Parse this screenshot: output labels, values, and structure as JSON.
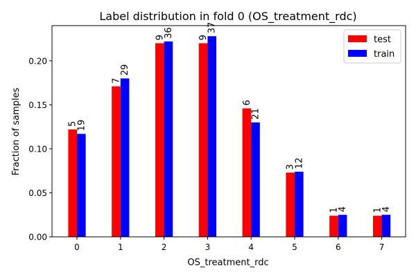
{
  "chart_data": {
    "type": "bar",
    "title": "Label distribution in fold 0 (OS_treatment_rdc)",
    "xlabel": "OS_treatment_rdc",
    "ylabel": "Fraction of samples",
    "categories": [
      "0",
      "1",
      "2",
      "3",
      "4",
      "5",
      "6",
      "7"
    ],
    "yticks": [
      "0.00",
      "0.05",
      "0.10",
      "0.15",
      "0.20"
    ],
    "ylim": [
      0,
      0.24
    ],
    "grid": false,
    "legend": "top-right",
    "series": [
      {
        "name": "test",
        "color": "#ff0000",
        "values": [
          0.122,
          0.171,
          0.22,
          0.22,
          0.146,
          0.073,
          0.024,
          0.024
        ],
        "labels": [
          "5",
          "7",
          "9",
          "9",
          "6",
          "3",
          "1",
          "1"
        ]
      },
      {
        "name": "train",
        "color": "#0000ff",
        "values": [
          0.117,
          0.18,
          0.222,
          0.228,
          0.13,
          0.074,
          0.025,
          0.025
        ],
        "labels": [
          "19",
          "29",
          "36",
          "37",
          "21",
          "12",
          "4",
          "4"
        ]
      }
    ]
  }
}
